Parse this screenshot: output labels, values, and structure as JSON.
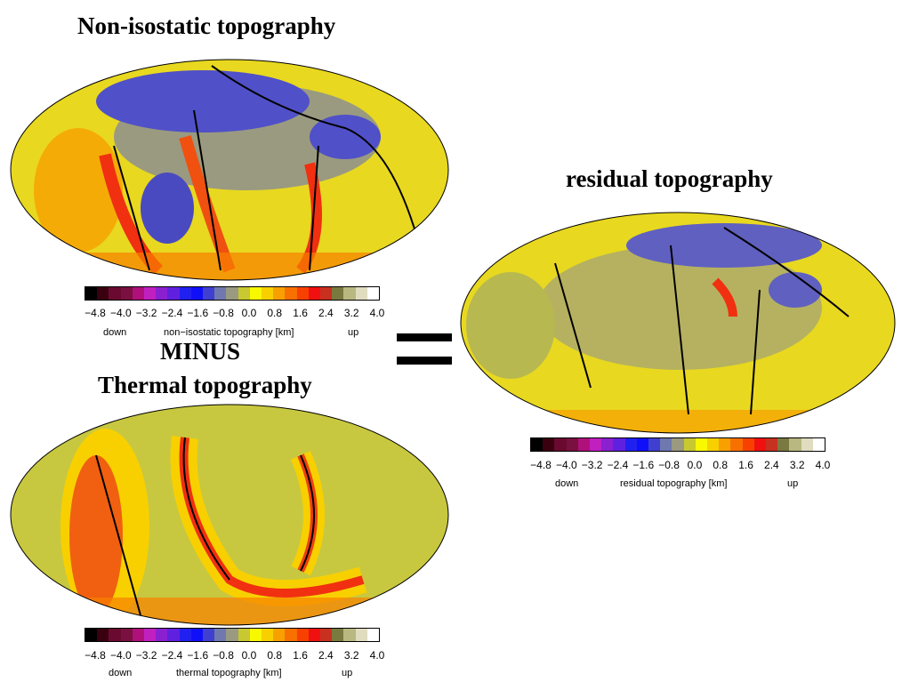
{
  "titles": {
    "top": "Non-isostatic topography",
    "right": "residual topography",
    "minus": "MINUS",
    "bottom": "Thermal topography"
  },
  "colorbar": {
    "colors": [
      "#000000",
      "#3a0010",
      "#6a0a30",
      "#7a1040",
      "#b0107a",
      "#c020c0",
      "#8a20d0",
      "#6020e0",
      "#2020f0",
      "#1010f8",
      "#4040d0",
      "#7078b0",
      "#9a9a80",
      "#c8c830",
      "#f8f800",
      "#f8d000",
      "#f8a000",
      "#f87000",
      "#f84000",
      "#f01010",
      "#c83020",
      "#7a7a40",
      "#b8b880",
      "#e0dcc0",
      "#ffffff"
    ],
    "ticks": [
      "−4.8",
      "−4.0",
      "−3.2",
      "−2.4",
      "−1.6",
      "−0.8",
      "0.0",
      "0.8",
      "1.6",
      "2.4",
      "3.2",
      "4.0"
    ],
    "down": "down",
    "up": "up"
  },
  "maps": [
    {
      "name": "non-isostatic",
      "axis_label": "non−isostatic topography [km]"
    },
    {
      "name": "residual",
      "axis_label": "residual topography [km]"
    },
    {
      "name": "thermal",
      "axis_label": "thermal topography [km]"
    }
  ]
}
